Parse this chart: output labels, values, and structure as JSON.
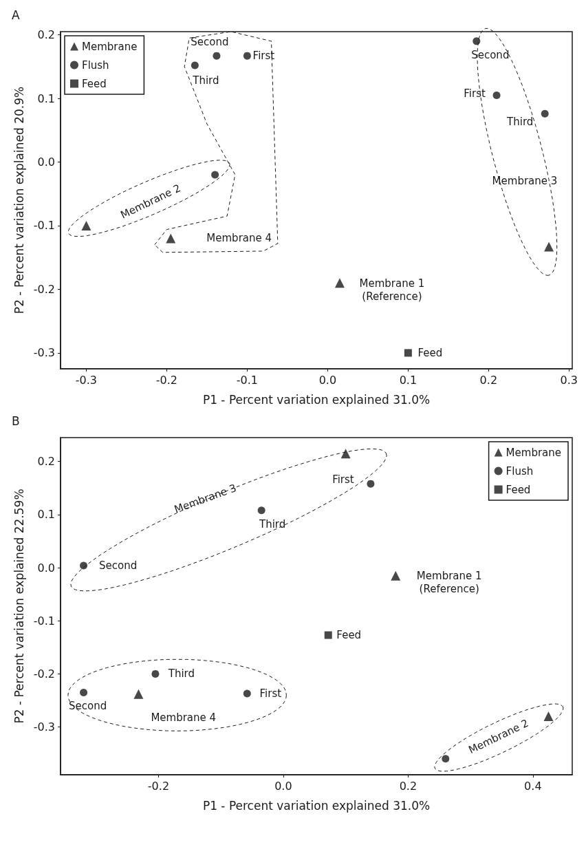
{
  "chart_data": [
    {
      "type": "scatter",
      "title": "A",
      "xlabel": "P1 - Percent variation explained 31.0%",
      "ylabel": "P2 - Percent variation explained 20.9%",
      "xlim": [
        -0.332,
        0.304
      ],
      "ylim": [
        -0.325,
        0.205
      ],
      "xticks": [
        -0.3,
        -0.2,
        -0.1,
        {
          "value": 0,
          "label": "0.0"
        },
        0.1,
        0.2,
        0.3
      ],
      "yticks": [
        -0.3,
        -0.2,
        -0.1,
        {
          "value": 0,
          "label": "0.0"
        },
        0.1,
        0.2
      ],
      "grid": false,
      "legend": "top left",
      "series": [
        {
          "name": "Membrane",
          "color": "#1a1a1a",
          "marker": "triangle",
          "x": [
            -0.3,
            -0.195,
            0.275,
            0.015
          ],
          "values": [
            -0.1,
            -0.12,
            -0.133,
            -0.19
          ]
        },
        {
          "name": "Flush",
          "color": "#1a1a1a",
          "marker": "circle",
          "x": [
            -0.14,
            -0.165,
            -0.138,
            -0.1,
            0.185,
            0.21,
            0.27
          ],
          "values": [
            -0.02,
            0.152,
            0.167,
            0.167,
            0.19,
            0.105,
            0.076
          ]
        },
        {
          "name": "Feed",
          "color": "#1a1a1a",
          "marker": "square",
          "x": [
            0.1
          ],
          "values": [
            -0.3
          ]
        }
      ],
      "annotations": [
        {
          "text": "Second",
          "x": -0.138,
          "y": 0.167
        },
        {
          "text": "First",
          "x": -0.1,
          "y": 0.167
        },
        {
          "text": "Third",
          "x": -0.165,
          "y": 0.152
        },
        {
          "text": "Second",
          "x": 0.185,
          "y": 0.19
        },
        {
          "text": "First",
          "x": 0.21,
          "y": 0.105
        },
        {
          "text": "Third",
          "x": 0.27,
          "y": 0.076
        },
        {
          "text": "Membrane 1\n(Reference)",
          "x": 0.015,
          "y": -0.19
        },
        {
          "text": "Feed",
          "x": 0.1,
          "y": -0.3
        },
        "Membrane 2",
        "Membrane 4",
        "Membrane 3"
      ]
    },
    {
      "type": "scatter",
      "title": "B",
      "xlabel": "P1 - Percent variation explained 31.0%",
      "ylabel": "P2 - Percent variation explained 22.59%",
      "xlim": [
        -0.357,
        0.463
      ],
      "ylim": [
        -0.39,
        0.245
      ],
      "xticks": [
        -0.2,
        {
          "value": 0,
          "label": "0.0"
        },
        0.2,
        0.4
      ],
      "yticks": [
        -0.3,
        -0.2,
        -0.1,
        {
          "value": 0,
          "label": "0.0"
        },
        0.1,
        0.2
      ],
      "grid": false,
      "legend": "top right",
      "series": [
        {
          "name": "Membrane",
          "color": "#1a1a1a",
          "marker": "triangle",
          "x": [
            0.1,
            0.18,
            -0.232,
            0.425
          ],
          "values": [
            0.215,
            -0.015,
            -0.238,
            -0.28
          ]
        },
        {
          "name": "Flush",
          "color": "#1a1a1a",
          "marker": "circle",
          "x": [
            0.14,
            -0.035,
            -0.32,
            -0.205,
            -0.32,
            -0.058,
            0.26
          ],
          "values": [
            0.158,
            0.108,
            0.004,
            -0.2,
            -0.235,
            -0.237,
            -0.36
          ]
        },
        {
          "name": "Feed",
          "color": "#1a1a1a",
          "marker": "square",
          "x": [
            0.072
          ],
          "values": [
            -0.127
          ]
        }
      ],
      "annotations": [
        {
          "text": "First",
          "x": 0.14,
          "y": 0.158
        },
        {
          "text": "Third",
          "x": -0.035,
          "y": 0.108
        },
        {
          "text": "Second",
          "x": -0.32,
          "y": 0.004
        },
        {
          "text": "Membrane 1\n(Reference)",
          "x": 0.18,
          "y": -0.015
        },
        {
          "text": "Feed",
          "x": 0.072,
          "y": -0.127
        },
        {
          "text": "Third",
          "x": -0.205,
          "y": -0.2
        },
        {
          "text": "Second",
          "x": -0.32,
          "y": -0.235
        },
        {
          "text": "First",
          "x": -0.058,
          "y": -0.237
        },
        "Membrane 3",
        "Membrane 4",
        "Membrane 2"
      ]
    }
  ]
}
